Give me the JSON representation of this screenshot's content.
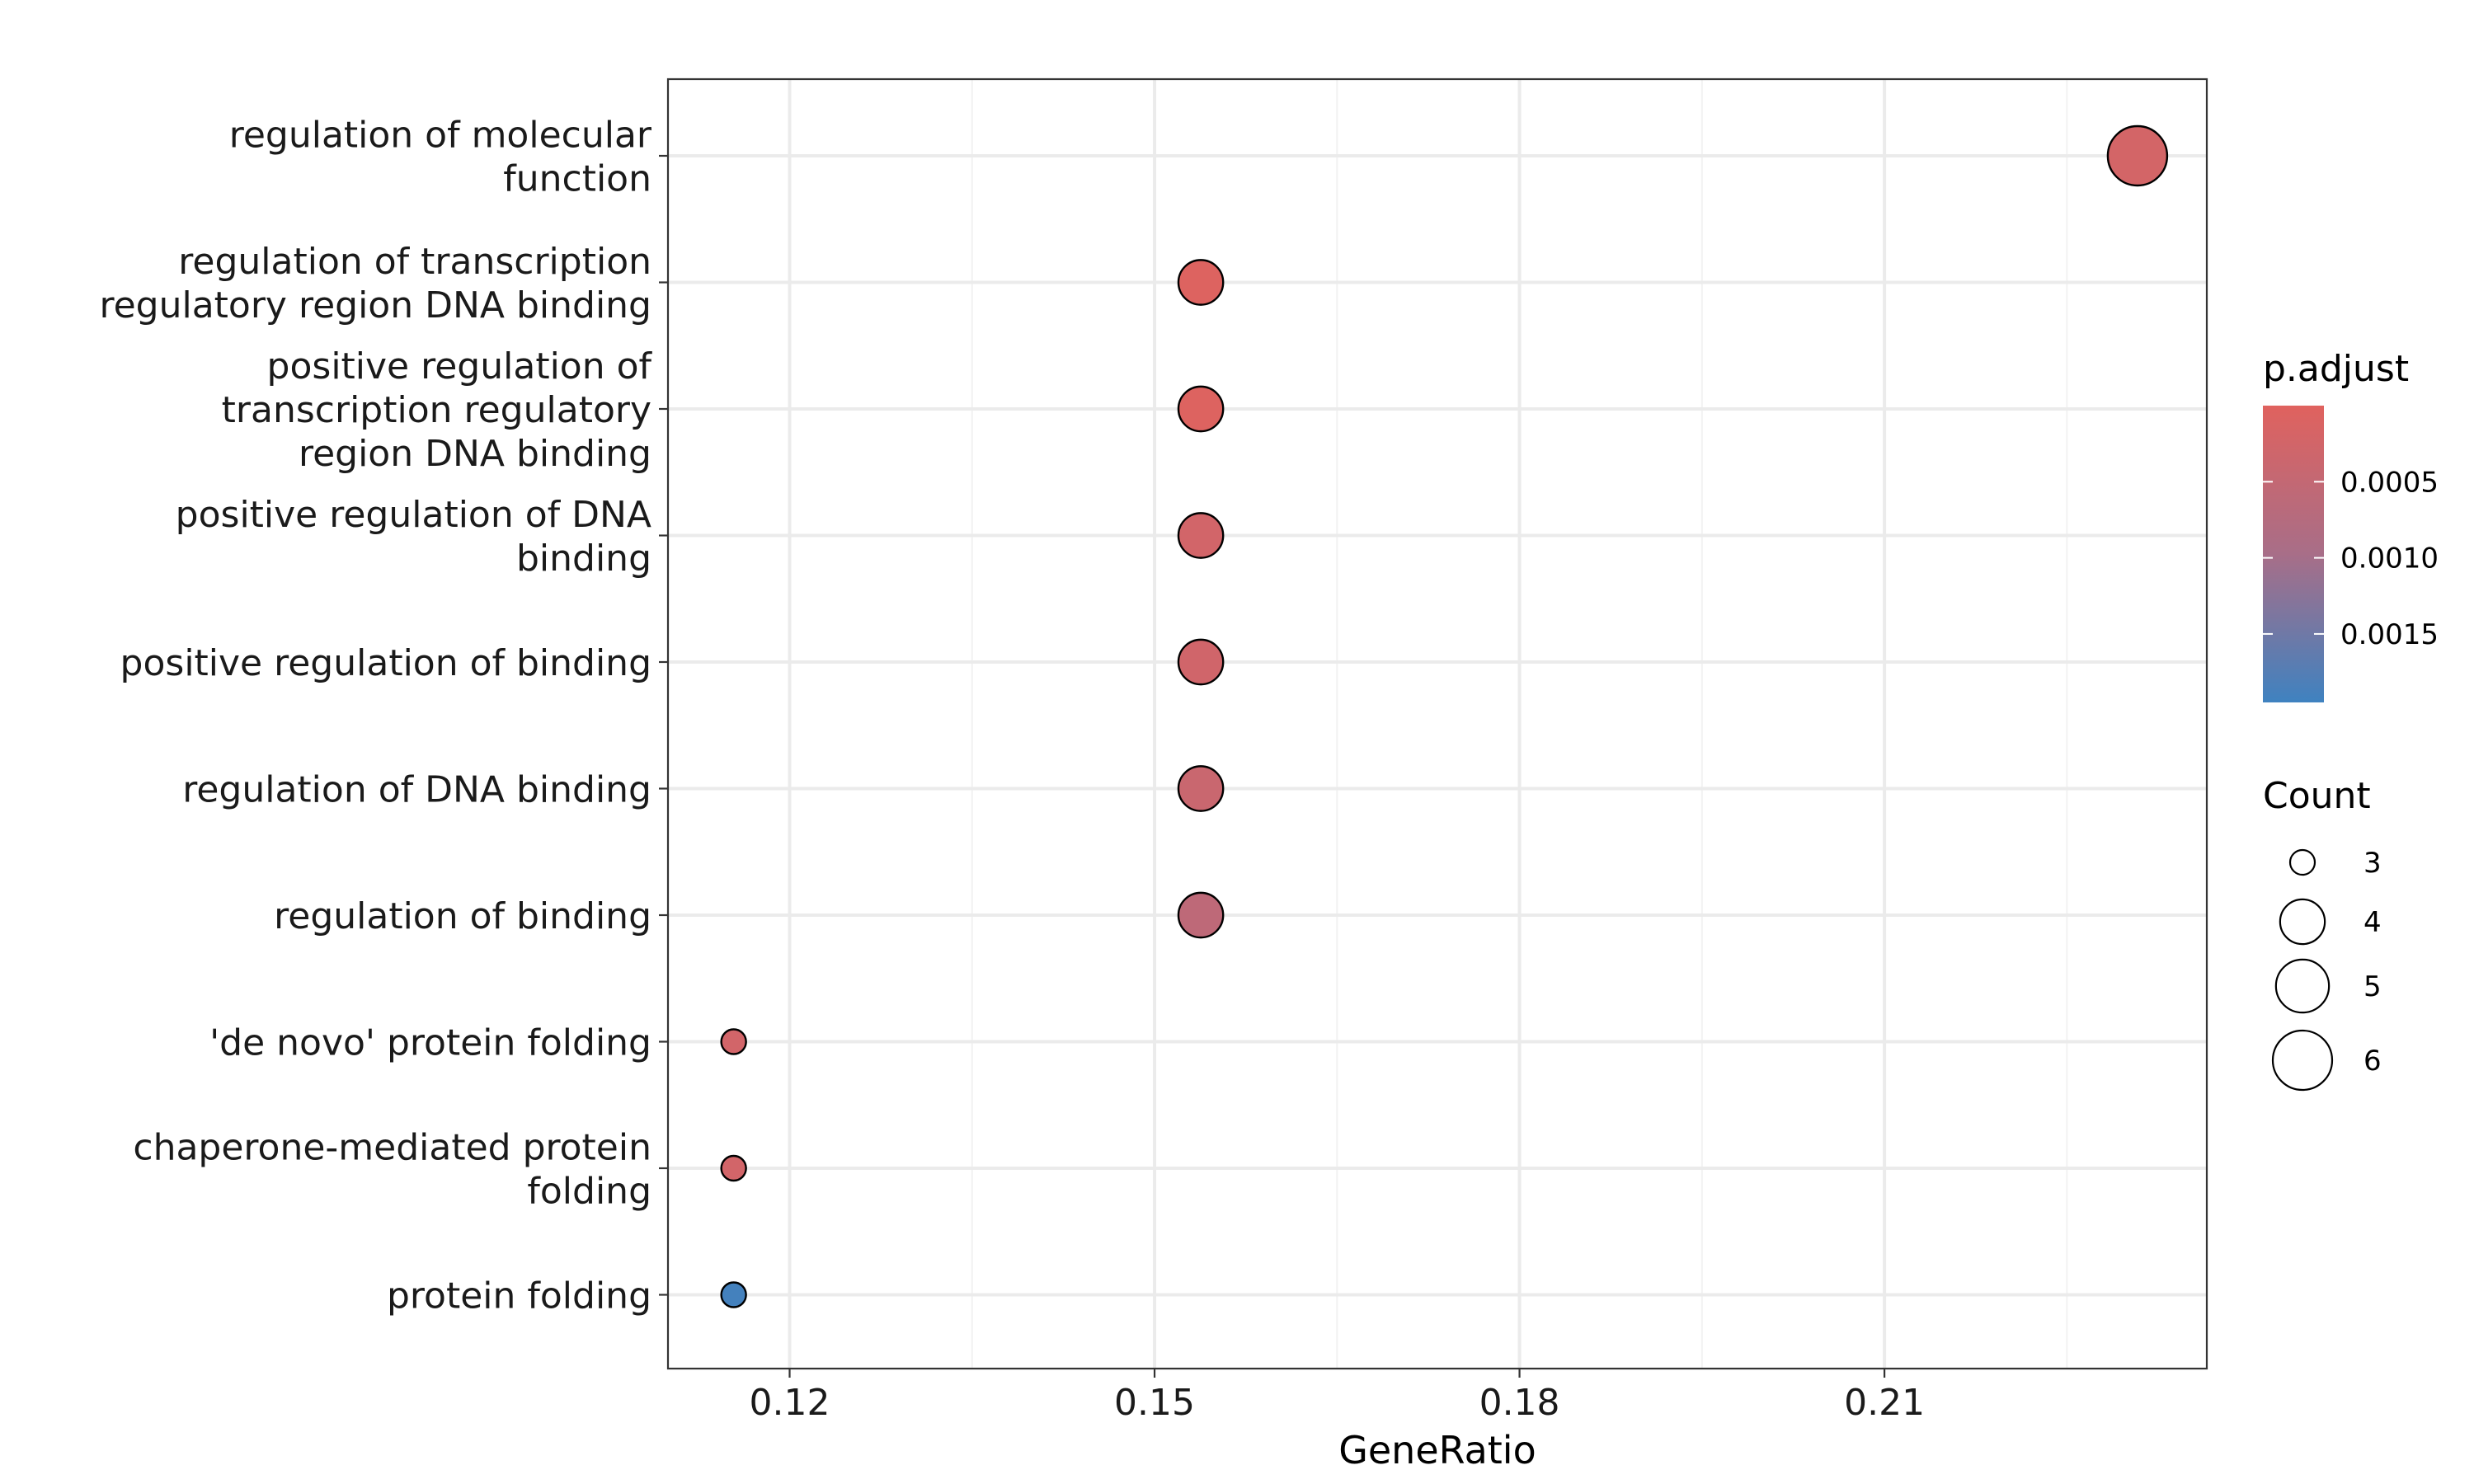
{
  "chart_data": {
    "type": "scatter",
    "xlabel": "GeneRatio",
    "ylabel": "",
    "xlim": [
      0.11,
      0.2365
    ],
    "xticks": [
      0.12,
      0.15,
      0.18,
      0.21
    ],
    "xtick_labels": [
      "0.12",
      "0.15",
      "0.18",
      "0.21"
    ],
    "grid": true,
    "categories": [
      {
        "label_lines": [
          "regulation of molecular",
          "function"
        ]
      },
      {
        "label_lines": [
          "regulation of transcription",
          "regulatory region DNA binding"
        ]
      },
      {
        "label_lines": [
          "positive regulation of",
          "transcription regulatory",
          "region DNA binding"
        ]
      },
      {
        "label_lines": [
          "positive regulation of DNA",
          "binding"
        ]
      },
      {
        "label_lines": [
          "positive regulation of binding"
        ]
      },
      {
        "label_lines": [
          "regulation of DNA binding"
        ]
      },
      {
        "label_lines": [
          "regulation of binding"
        ]
      },
      {
        "label_lines": [
          "'de novo' protein folding"
        ]
      },
      {
        "label_lines": [
          "chaperone-mediated protein",
          "folding"
        ]
      },
      {
        "label_lines": [
          "protein folding"
        ]
      }
    ],
    "points": [
      {
        "x": 0.2308,
        "count": 6,
        "p_adjust": 0.00022
      },
      {
        "x": 0.1538,
        "count": 4,
        "p_adjust": 5e-05
      },
      {
        "x": 0.1538,
        "count": 4,
        "p_adjust": 5e-05
      },
      {
        "x": 0.1538,
        "count": 4,
        "p_adjust": 0.00025
      },
      {
        "x": 0.1538,
        "count": 4,
        "p_adjust": 0.00028
      },
      {
        "x": 0.1538,
        "count": 4,
        "p_adjust": 0.0004
      },
      {
        "x": 0.1538,
        "count": 4,
        "p_adjust": 0.0006
      },
      {
        "x": 0.1154,
        "count": 3,
        "p_adjust": 0.00025
      },
      {
        "x": 0.1154,
        "count": 3,
        "p_adjust": 0.00025
      },
      {
        "x": 0.1154,
        "count": 3,
        "p_adjust": 0.0019
      }
    ],
    "color_legend": {
      "title": "p.adjust",
      "low_color": "#e0625e",
      "mid_color": "#a86e88",
      "high_color": "#3f82c0",
      "range": [
        0.0,
        0.00195
      ],
      "ticks": [
        0.0005,
        0.001,
        0.0015
      ],
      "tick_labels": [
        "0.0005",
        "0.0010",
        "0.0015"
      ]
    },
    "size_legend": {
      "title": "Count",
      "values": [
        3,
        4,
        5,
        6
      ],
      "labels": [
        "3",
        "4",
        "5",
        "6"
      ]
    }
  }
}
